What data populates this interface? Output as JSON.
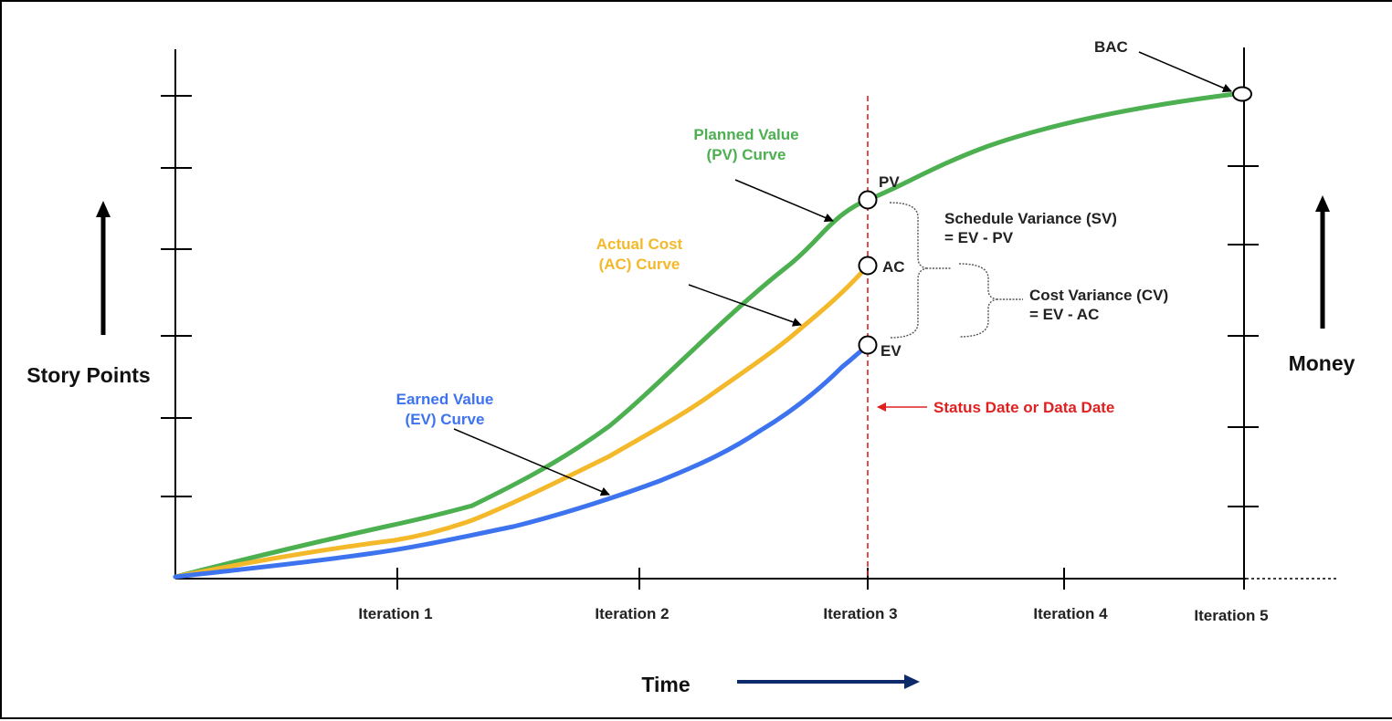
{
  "axes": {
    "left_label": "Story Points",
    "right_label": "Money",
    "bottom_label": "Time",
    "x_ticks": [
      "Iteration 1",
      "Iteration 2",
      "Iteration 3",
      "Iteration 4",
      "Iteration 5"
    ]
  },
  "curves": {
    "pv": {
      "label_line1": "Planned Value",
      "label_line2": "(PV) Curve",
      "point": "PV",
      "color": "#4caf50"
    },
    "ac": {
      "label_line1": "Actual Cost",
      "label_line2": "(AC) Curve",
      "point": "AC",
      "color": "#f4b92a"
    },
    "ev": {
      "label_line1": "Earned Value",
      "label_line2": "(EV) Curve",
      "point": "EV",
      "color": "#3d73ef"
    }
  },
  "bac": {
    "label": "BAC"
  },
  "status_date": {
    "label": "Status Date or Data Date",
    "color": "#e02020"
  },
  "sv": {
    "line1": "Schedule Variance (SV)",
    "line2": "= EV - PV"
  },
  "cv": {
    "line1": "Cost Variance (CV)",
    "line2": "= EV - AC"
  },
  "arrow_color": "#0d2a6b"
}
